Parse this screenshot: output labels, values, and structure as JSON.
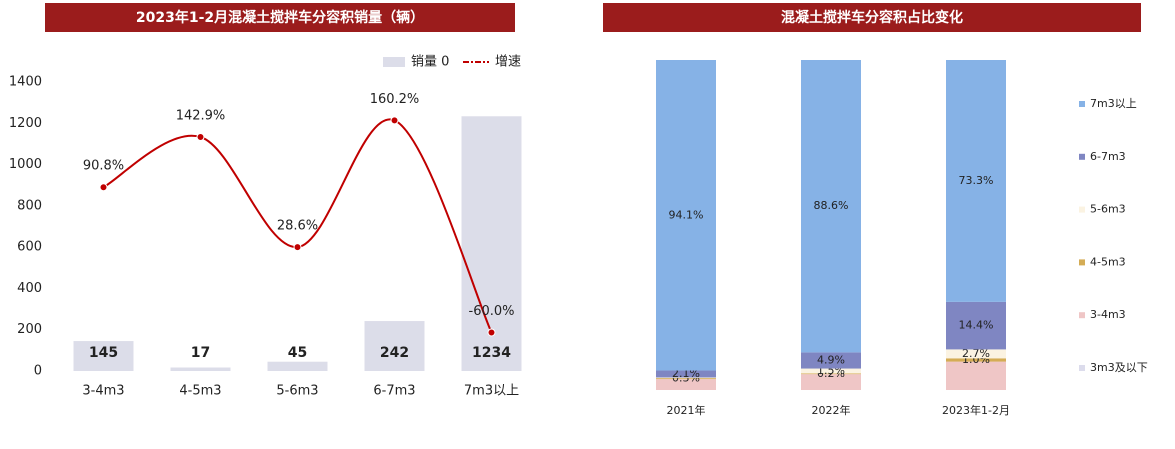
{
  "chart_data": [
    {
      "type": "combo",
      "title": "2023年1-2月混凝土搅拌车分容积销量（辆）",
      "categories": [
        "3-4m3",
        "4-5m3",
        "5-6m3",
        "6-7m3",
        "7m3以上"
      ],
      "series": [
        {
          "name": "销量 0",
          "type": "bar",
          "color": "#dcdde9",
          "values": [
            145,
            17,
            45,
            242,
            1234
          ]
        },
        {
          "name": "增速",
          "type": "line",
          "axis": "y2",
          "color": "#c00000",
          "values": [
            90.8,
            142.9,
            28.6,
            160.2,
            -60.0
          ],
          "value_labels": [
            "90.8%",
            "142.9%",
            "28.6%",
            "160.2%",
            "-60.0%"
          ]
        }
      ],
      "ylim": [
        0,
        1400
      ],
      "yticks": [
        0,
        200,
        400,
        600,
        800,
        1000,
        1200,
        1400
      ],
      "y2lim": [
        -100,
        200
      ],
      "legend": "top-right"
    },
    {
      "type": "stacked100",
      "title": "混凝土搅拌车分容积占比变化",
      "categories": [
        "2021年",
        "2022年",
        "2023年1-2月"
      ],
      "series": [
        {
          "name": "7m3以上",
          "color": "#86b2e6",
          "values": [
            94.1,
            88.6,
            73.3
          ],
          "value_labels": [
            "94.1%",
            "88.6%",
            "73.3%"
          ]
        },
        {
          "name": "6-7m3",
          "color": "#7f86c2",
          "values": [
            2.1,
            4.9,
            14.4
          ],
          "value_labels": [
            "2.1%",
            "4.9%",
            "14.4%"
          ]
        },
        {
          "name": "5-6m3",
          "color": "#fbf3e2",
          "values": [
            0.2,
            1.5,
            2.7
          ],
          "value_labels": [
            null,
            "1.5%",
            "2.7%"
          ]
        },
        {
          "name": "4-5m3",
          "color": "#d4ac55",
          "values": [
            0.3,
            0.2,
            1.0
          ],
          "value_labels": [
            "0.3%",
            "0.2%",
            "1.0%"
          ]
        },
        {
          "name": "3-4m3",
          "color": "#efc6c6",
          "values": [
            3.3,
            4.8,
            8.6
          ],
          "value_labels": [
            null,
            null,
            null
          ]
        },
        {
          "name": "3m3及以下",
          "color": "#dcdcec",
          "values": [
            0,
            0,
            0
          ],
          "value_labels": [
            null,
            null,
            null
          ]
        }
      ],
      "ylim": [
        0,
        100
      ],
      "legend": "right"
    }
  ]
}
